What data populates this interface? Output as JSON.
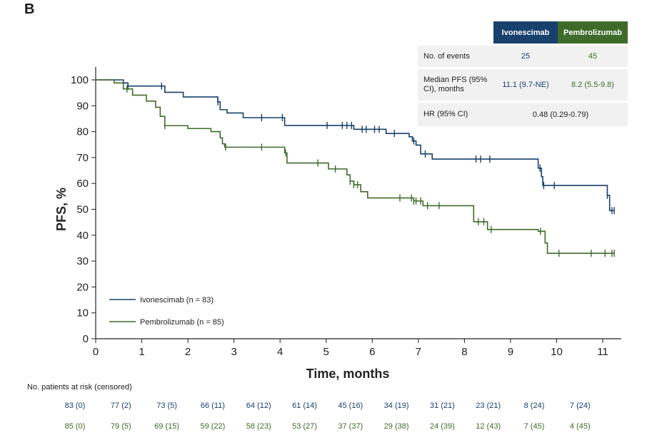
{
  "panel_letter": "B",
  "table": {
    "header_ivo": "Ivonescimab",
    "header_pem": "Pembrolizumab",
    "events_label": "No. of events",
    "events_ivo": "25",
    "events_pem": "45",
    "median_label": "Median PFS (95% CI), months",
    "median_ivo": "11.1 (9.7-NE)",
    "median_pem": "8.2 (5.5-9.8)",
    "hr_label": "HR (95% CI)",
    "hr_value": "0.48 (0.29-0.79)"
  },
  "chart_data": {
    "type": "line",
    "subtype": "kaplan-meier",
    "xlabel": "Time, months",
    "ylabel": "PFS, %",
    "xlim": [
      0,
      11.4
    ],
    "ylim": [
      0,
      100
    ],
    "xticks": [
      0,
      1,
      2,
      3,
      4,
      5,
      6,
      7,
      8,
      9,
      10,
      11
    ],
    "yticks": [
      0,
      10,
      20,
      30,
      40,
      50,
      60,
      70,
      80,
      90,
      100
    ],
    "legend": [
      {
        "label": "Ivonescimab (n = 83)",
        "color": "#17406d"
      },
      {
        "label": "Pembrolizumab (n = 85)",
        "color": "#3f6b2a"
      }
    ],
    "series": [
      {
        "name": "Ivonescimab",
        "color": "#17406d",
        "steps": [
          [
            0,
            100
          ],
          [
            0.6,
            98.8
          ],
          [
            0.7,
            97.6
          ],
          [
            1.5,
            95.2
          ],
          [
            1.9,
            93.4
          ],
          [
            2.65,
            91.5
          ],
          [
            2.7,
            88.5
          ],
          [
            2.85,
            87.2
          ],
          [
            3.2,
            85.4
          ],
          [
            4.1,
            82.4
          ],
          [
            5.6,
            80.9
          ],
          [
            6.3,
            79.3
          ],
          [
            6.8,
            78.0
          ],
          [
            6.87,
            76.4
          ],
          [
            6.95,
            74.8
          ],
          [
            7.05,
            71.4
          ],
          [
            7.3,
            69.4
          ],
          [
            9.6,
            65.9
          ],
          [
            9.67,
            62.6
          ],
          [
            9.7,
            59.2
          ],
          [
            11.1,
            55.4
          ],
          [
            11.15,
            49.5
          ],
          [
            11.25,
            49.5
          ]
        ],
        "censor": [
          0.7,
          1.43,
          2.65,
          3.6,
          4.05,
          5.02,
          5.35,
          5.45,
          5.55,
          5.78,
          5.87,
          6.05,
          6.15,
          6.48,
          6.9,
          7.15,
          8.25,
          8.35,
          8.55,
          9.64,
          9.72,
          9.95,
          11.1,
          11.2,
          11.25
        ]
      },
      {
        "name": "Pembrolizumab",
        "color": "#3f6b2a",
        "steps": [
          [
            0,
            100
          ],
          [
            0.4,
            98.8
          ],
          [
            0.6,
            96.5
          ],
          [
            0.8,
            94.1
          ],
          [
            1.1,
            91.8
          ],
          [
            1.3,
            89.4
          ],
          [
            1.4,
            85.9
          ],
          [
            1.5,
            82.3
          ],
          [
            2.0,
            81.2
          ],
          [
            2.5,
            80.0
          ],
          [
            2.7,
            77.6
          ],
          [
            2.75,
            75.3
          ],
          [
            2.8,
            74.0
          ],
          [
            4.1,
            71.8
          ],
          [
            4.15,
            67.9
          ],
          [
            5.05,
            65.6
          ],
          [
            5.45,
            63.3
          ],
          [
            5.52,
            60.9
          ],
          [
            5.6,
            59.5
          ],
          [
            5.75,
            56.8
          ],
          [
            5.9,
            54.4
          ],
          [
            6.9,
            53.2
          ],
          [
            7.1,
            51.4
          ],
          [
            8.2,
            45.2
          ],
          [
            8.5,
            42.2
          ],
          [
            9.6,
            41.5
          ],
          [
            9.75,
            37.0
          ],
          [
            9.8,
            33.0
          ],
          [
            11.25,
            33.0
          ]
        ],
        "censor": [
          0.68,
          1.5,
          2.82,
          3.6,
          4.12,
          4.82,
          5.2,
          5.52,
          5.6,
          5.68,
          6.6,
          6.85,
          6.9,
          6.95,
          7.05,
          7.2,
          7.45,
          8.3,
          8.42,
          8.58,
          9.65,
          10.05,
          10.75,
          11.05,
          11.2,
          11.25
        ]
      }
    ]
  },
  "risk": {
    "title": "No. patients at risk (censored)",
    "ivonescimab": [
      "83 (0)",
      "77 (2)",
      "73 (5)",
      "66 (11)",
      "64 (12)",
      "61 (14)",
      "45 (16)",
      "34 (19)",
      "31 (21)",
      "23 (21)",
      "8 (24)",
      "7 (24)"
    ],
    "pembrolizumab": [
      "85 (0)",
      "79 (5)",
      "69 (15)",
      "59 (22)",
      "58 (23)",
      "53 (27)",
      "37 (37)",
      "29 (38)",
      "24 (39)",
      "12 (43)",
      "7 (45)",
      "4 (45)"
    ]
  }
}
